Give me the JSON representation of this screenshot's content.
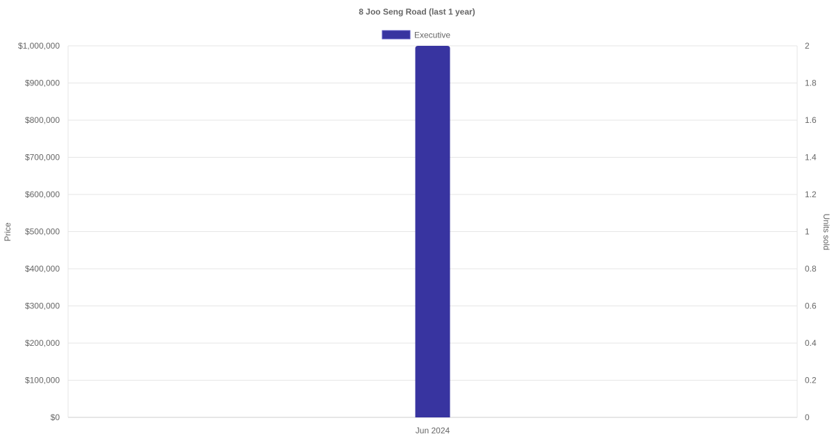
{
  "chart_data": {
    "type": "bar",
    "title": "8 Joo Seng Road (last 1 year)",
    "categories": [
      "Jun 2024"
    ],
    "series": [
      {
        "name": "Executive",
        "values": [
          2
        ],
        "axis": "right",
        "color": "#3834a0"
      }
    ],
    "y_left": {
      "label": "Price",
      "range": [
        0,
        1000000
      ],
      "ticks": [
        "$0",
        "$100,000",
        "$200,000",
        "$300,000",
        "$400,000",
        "$500,000",
        "$600,000",
        "$700,000",
        "$800,000",
        "$900,000",
        "$1,000,000"
      ]
    },
    "y_right": {
      "label": "Units sold",
      "range": [
        0,
        2
      ],
      "ticks": [
        "0",
        "0.2",
        "0.4",
        "0.6",
        "0.8",
        "1",
        "1.2",
        "1.4",
        "1.6",
        "1.8",
        "2"
      ]
    },
    "grid": true,
    "legend_position": "top"
  }
}
